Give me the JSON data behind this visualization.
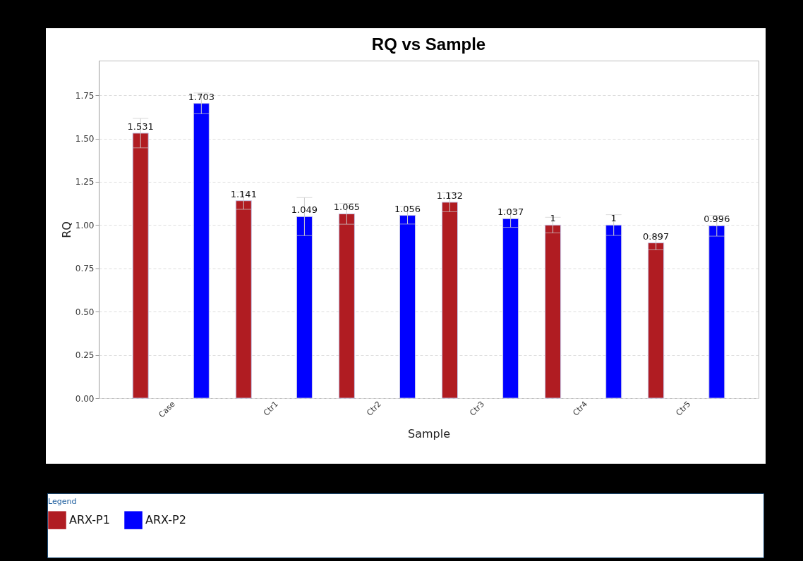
{
  "chart_data": {
    "type": "bar",
    "title": "RQ vs Sample",
    "xlabel": "Sample",
    "ylabel": "RQ",
    "legend_title": "Legend",
    "categories": [
      "Case",
      "Ctr1",
      "Ctr2",
      "Ctr3",
      "Ctr4",
      "Ctr5"
    ],
    "series": [
      {
        "name": "ARX-P1",
        "color": "#b01c22",
        "values": [
          1.531,
          1.141,
          1.065,
          1.132,
          1,
          0.897
        ],
        "errors": [
          0.085,
          0.05,
          0.06,
          0.055,
          0.045,
          0.04
        ]
      },
      {
        "name": "ARX-P2",
        "color": "#0000ff",
        "values": [
          1.703,
          1.049,
          1.056,
          1.037,
          1,
          0.996
        ],
        "errors": [
          0.06,
          0.11,
          0.05,
          0.05,
          0.06,
          0.06
        ]
      }
    ],
    "ylim": [
      0,
      1.95
    ],
    "yticks": [
      {
        "value": 0,
        "label": "0.00"
      },
      {
        "value": 0.25,
        "label": "0.25"
      },
      {
        "value": 0.5,
        "label": "0.50"
      },
      {
        "value": 0.75,
        "label": "0.75"
      },
      {
        "value": 1,
        "label": "1.00"
      },
      {
        "value": 1.25,
        "label": "1.25"
      },
      {
        "value": 1.5,
        "label": "1.50"
      },
      {
        "value": 1.75,
        "label": "1.75"
      }
    ],
    "grid": "y",
    "legend": "bottom left",
    "data_labels": true
  }
}
